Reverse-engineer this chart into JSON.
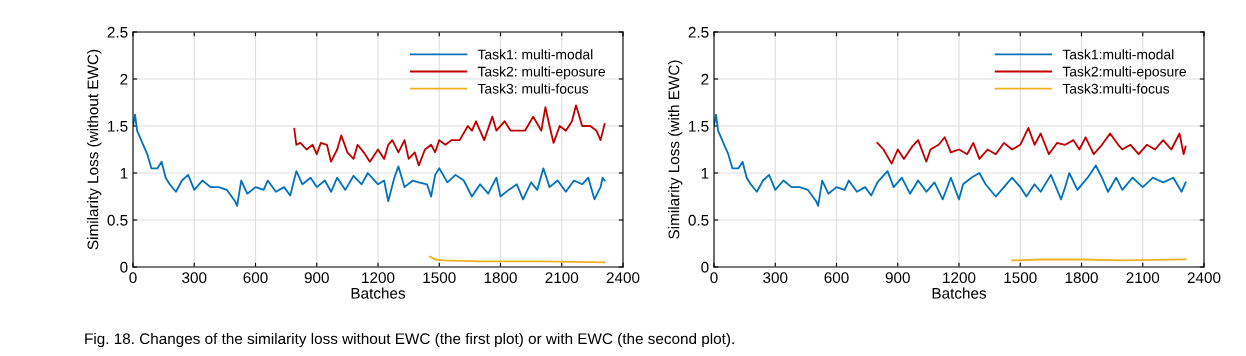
{
  "chart_data": [
    {
      "type": "line",
      "xlabel": "Batches",
      "ylabel": "Similarity Loss (without EWC)",
      "xlim": [
        0,
        2400
      ],
      "ylim": [
        0,
        2.5
      ],
      "xticks": [
        0,
        300,
        600,
        900,
        1200,
        1500,
        1800,
        2100,
        2400
      ],
      "yticks": [
        0,
        {
          "value": 0.5,
          "label": "0.5"
        },
        1,
        {
          "value": 1.5,
          "label": "1.5"
        },
        2,
        {
          "value": 2.5,
          "label": "2.5"
        }
      ],
      "grid": true,
      "legend": "top right",
      "annotations": [
        "Fig. 18. Changes of the similarity loss without EWC (the first plot) or with EWC (the second plot)."
      ],
      "series": [
        {
          "name": "Task1: multi-modal",
          "color": "#0072bd",
          "x": [
            0,
            10,
            20,
            50,
            70,
            90,
            120,
            140,
            160,
            180,
            210,
            240,
            270,
            300,
            340,
            380,
            420,
            460,
            500,
            510,
            530,
            560,
            600,
            640,
            660,
            700,
            740,
            770,
            800,
            830,
            870,
            900,
            940,
            970,
            1000,
            1040,
            1080,
            1120,
            1150,
            1200,
            1230,
            1250,
            1280,
            1300,
            1330,
            1370,
            1400,
            1440,
            1460,
            1480,
            1500,
            1540,
            1580,
            1620,
            1660,
            1700,
            1740,
            1780,
            1800,
            1840,
            1880,
            1910,
            1950,
            1980,
            2010,
            2040,
            2080,
            2120,
            2160,
            2200,
            2230,
            2260,
            2290,
            2300,
            2310
          ],
          "values": [
            1.5,
            1.62,
            1.45,
            1.3,
            1.2,
            1.05,
            1.05,
            1.12,
            0.95,
            0.88,
            0.8,
            0.92,
            0.98,
            0.82,
            0.92,
            0.85,
            0.85,
            0.82,
            0.7,
            0.65,
            0.92,
            0.78,
            0.85,
            0.82,
            0.92,
            0.8,
            0.85,
            0.76,
            1.02,
            0.88,
            0.95,
            0.85,
            0.92,
            0.8,
            0.95,
            0.82,
            0.97,
            0.88,
            1.0,
            0.88,
            0.92,
            0.7,
            0.95,
            1.07,
            0.85,
            0.92,
            0.9,
            0.88,
            0.75,
            0.98,
            1.05,
            0.9,
            0.98,
            0.92,
            0.75,
            0.88,
            0.78,
            0.95,
            0.75,
            0.82,
            0.88,
            0.72,
            0.9,
            0.82,
            1.05,
            0.85,
            0.92,
            0.8,
            0.92,
            0.88,
            0.95,
            0.72,
            0.85,
            0.95,
            0.92
          ]
        },
        {
          "name": "Task2: multi-eposure",
          "color": "#c00000",
          "x": [
            790,
            800,
            820,
            850,
            880,
            900,
            920,
            950,
            970,
            1000,
            1020,
            1050,
            1080,
            1100,
            1130,
            1160,
            1200,
            1230,
            1250,
            1270,
            1300,
            1330,
            1350,
            1380,
            1400,
            1430,
            1460,
            1480,
            1500,
            1530,
            1560,
            1600,
            1640,
            1660,
            1680,
            1720,
            1760,
            1780,
            1820,
            1850,
            1880,
            1920,
            1960,
            2000,
            2020,
            2040,
            2060,
            2090,
            2120,
            2150,
            2170,
            2200,
            2240,
            2270,
            2290,
            2310
          ],
          "values": [
            1.47,
            1.3,
            1.32,
            1.25,
            1.3,
            1.2,
            1.32,
            1.3,
            1.12,
            1.25,
            1.4,
            1.22,
            1.15,
            1.3,
            1.22,
            1.12,
            1.25,
            1.15,
            1.3,
            1.35,
            1.22,
            1.35,
            1.15,
            1.22,
            1.08,
            1.25,
            1.3,
            1.22,
            1.35,
            1.3,
            1.35,
            1.35,
            1.5,
            1.45,
            1.55,
            1.35,
            1.6,
            1.45,
            1.55,
            1.45,
            1.45,
            1.45,
            1.6,
            1.45,
            1.7,
            1.5,
            1.32,
            1.5,
            1.45,
            1.55,
            1.72,
            1.5,
            1.5,
            1.45,
            1.35,
            1.52
          ]
        },
        {
          "name": "Task3: multi-focus",
          "color": "#edb120",
          "x": [
            1455,
            1480,
            1520,
            1700,
            2000,
            2310
          ],
          "values": [
            0.11,
            0.08,
            0.07,
            0.06,
            0.06,
            0.05
          ]
        }
      ]
    },
    {
      "type": "line",
      "xlabel": "Batches",
      "ylabel": "Similarity Loss (with EWC)",
      "xlim": [
        0,
        2400
      ],
      "ylim": [
        0,
        2.5
      ],
      "xticks": [
        0,
        300,
        600,
        900,
        1200,
        1500,
        1800,
        2100,
        2400
      ],
      "yticks": [
        0,
        {
          "value": 0.5,
          "label": "0.5"
        },
        1,
        {
          "value": 1.5,
          "label": "1.5"
        },
        2,
        {
          "value": 2.5,
          "label": "2.5"
        }
      ],
      "grid": true,
      "legend": "top right",
      "series": [
        {
          "name": "Task1:multi-modal",
          "color": "#0072bd",
          "x": [
            0,
            10,
            20,
            50,
            70,
            90,
            120,
            140,
            160,
            180,
            210,
            240,
            270,
            300,
            340,
            380,
            420,
            460,
            500,
            510,
            530,
            560,
            600,
            640,
            660,
            700,
            740,
            770,
            800,
            850,
            880,
            920,
            960,
            1000,
            1040,
            1080,
            1120,
            1160,
            1200,
            1220,
            1260,
            1300,
            1330,
            1380,
            1420,
            1460,
            1500,
            1530,
            1570,
            1600,
            1650,
            1700,
            1720,
            1740,
            1780,
            1830,
            1870,
            1900,
            1930,
            1970,
            2000,
            2050,
            2100,
            2150,
            2200,
            2250,
            2290,
            2310
          ],
          "values": [
            1.5,
            1.62,
            1.45,
            1.3,
            1.2,
            1.05,
            1.05,
            1.12,
            0.95,
            0.88,
            0.8,
            0.92,
            0.98,
            0.82,
            0.92,
            0.85,
            0.85,
            0.82,
            0.7,
            0.65,
            0.92,
            0.78,
            0.85,
            0.82,
            0.92,
            0.8,
            0.85,
            0.76,
            0.9,
            1.02,
            0.85,
            0.95,
            0.78,
            0.92,
            0.8,
            0.9,
            0.72,
            0.95,
            0.72,
            0.88,
            0.95,
            1.0,
            0.88,
            0.75,
            0.85,
            0.95,
            0.85,
            0.75,
            0.88,
            0.8,
            0.98,
            0.72,
            0.85,
            1.0,
            0.82,
            0.95,
            1.08,
            0.95,
            0.8,
            0.95,
            0.82,
            0.95,
            0.85,
            0.95,
            0.9,
            0.95,
            0.8,
            0.9
          ]
        },
        {
          "name": "Task2:multi-eposure",
          "color": "#c00000",
          "x": [
            800,
            830,
            870,
            900,
            930,
            970,
            1000,
            1040,
            1060,
            1100,
            1130,
            1160,
            1200,
            1240,
            1270,
            1300,
            1340,
            1380,
            1420,
            1460,
            1500,
            1540,
            1570,
            1600,
            1640,
            1680,
            1720,
            1760,
            1790,
            1820,
            1860,
            1900,
            1940,
            1980,
            2000,
            2040,
            2080,
            2120,
            2160,
            2200,
            2240,
            2280,
            2300,
            2310
          ],
          "values": [
            1.32,
            1.25,
            1.1,
            1.25,
            1.15,
            1.28,
            1.35,
            1.12,
            1.25,
            1.3,
            1.38,
            1.22,
            1.25,
            1.2,
            1.32,
            1.15,
            1.25,
            1.2,
            1.32,
            1.25,
            1.3,
            1.48,
            1.3,
            1.42,
            1.2,
            1.32,
            1.3,
            1.35,
            1.25,
            1.38,
            1.2,
            1.3,
            1.42,
            1.3,
            1.25,
            1.3,
            1.2,
            1.3,
            1.25,
            1.35,
            1.25,
            1.42,
            1.2,
            1.28
          ]
        },
        {
          "name": "Task3:multi-focus",
          "color": "#edb120",
          "x": [
            1460,
            1600,
            1800,
            2000,
            2310
          ],
          "values": [
            0.07,
            0.08,
            0.08,
            0.07,
            0.08
          ]
        }
      ]
    }
  ]
}
